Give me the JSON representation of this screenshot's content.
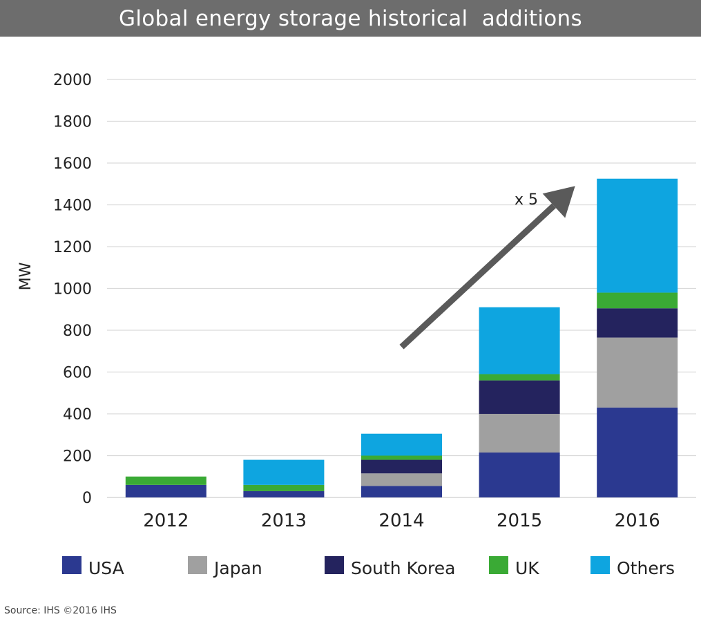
{
  "chart_data": {
    "type": "bar",
    "stacked": true,
    "title": "Global energy storage historical  additions",
    "ylabel": "MW",
    "xlabel": "",
    "ylim": [
      0,
      2000
    ],
    "yticks": [
      0,
      200,
      400,
      600,
      800,
      1000,
      1200,
      1400,
      1600,
      1800,
      2000
    ],
    "grid": true,
    "legend_position": "bottom",
    "categories": [
      "2012",
      "2013",
      "2014",
      "2015",
      "2016"
    ],
    "series": [
      {
        "name": "USA",
        "color": "#2b3990",
        "values": [
          60,
          30,
          55,
          215,
          430
        ]
      },
      {
        "name": "Japan",
        "color": "#a0a0a0",
        "values": [
          0,
          0,
          60,
          185,
          335
        ]
      },
      {
        "name": "South Korea",
        "color": "#24235e",
        "values": [
          0,
          0,
          65,
          160,
          140
        ]
      },
      {
        "name": "UK",
        "color": "#3aaa35",
        "values": [
          40,
          30,
          20,
          30,
          75
        ]
      },
      {
        "name": "Others",
        "color": "#0ea5e0",
        "values": [
          0,
          120,
          105,
          320,
          545
        ]
      }
    ],
    "annotations": [
      {
        "text": "x 5",
        "arrow_from": {
          "category": "2014",
          "value": 720
        },
        "arrow_to": {
          "category": "2016",
          "value": 1490
        }
      }
    ]
  },
  "source": "Source: IHS ©2016 IHS"
}
